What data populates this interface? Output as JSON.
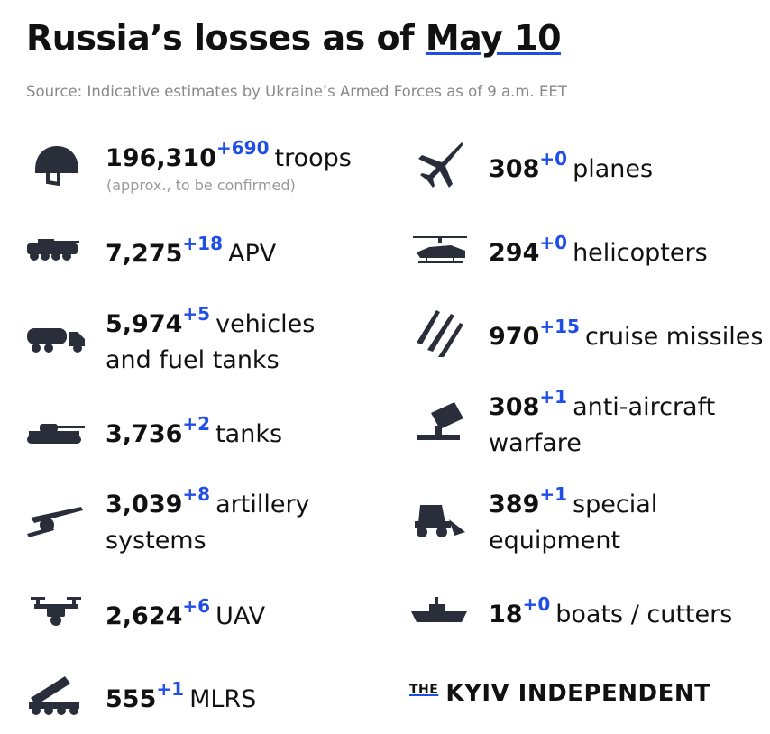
{
  "header": {
    "title_prefix": "Russia’s losses as of",
    "title_date": "May 10",
    "source": "Source: Indicative estimates by Ukraine’s Armed Forces as of 9 a.m. EET"
  },
  "left": [
    {
      "icon": "helmet-icon",
      "value": "196,310",
      "delta": "+690",
      "label": "troops",
      "note": "(approx., to be confirmed)"
    },
    {
      "icon": "apv-icon",
      "value": "7,275",
      "delta": "+18",
      "label": "APV"
    },
    {
      "icon": "fuel-truck-icon",
      "value": "5,974",
      "delta": "+5",
      "label": "vehicles",
      "label2": "and fuel tanks"
    },
    {
      "icon": "tank-icon",
      "value": "3,736",
      "delta": "+2",
      "label": "tanks"
    },
    {
      "icon": "artillery-icon",
      "value": "3,039",
      "delta": "+8",
      "label": "artillery",
      "label2": "systems"
    },
    {
      "icon": "drone-icon",
      "value": "2,624",
      "delta": "+6",
      "label": "UAV"
    },
    {
      "icon": "mlrs-icon",
      "value": "555",
      "delta": "+1",
      "label": "MLRS"
    }
  ],
  "right": [
    {
      "icon": "plane-icon",
      "value": "308",
      "delta": "+0",
      "label": "planes"
    },
    {
      "icon": "helicopter-icon",
      "value": "294",
      "delta": "+0",
      "label": "helicopters"
    },
    {
      "icon": "missiles-icon",
      "value": "970",
      "delta": "+15",
      "label": "cruise missiles"
    },
    {
      "icon": "anti-aircraft-icon",
      "value": "308",
      "delta": "+1",
      "label": "anti-aircraft",
      "label2": "warfare"
    },
    {
      "icon": "special-equipment-icon",
      "value": "389",
      "delta": "+1",
      "label": "special",
      "label2": "equipment"
    },
    {
      "icon": "boat-icon",
      "value": "18",
      "delta": "+0",
      "label": "boats / cutters"
    }
  ],
  "logo": {
    "the": "THE",
    "name": "KYIV INDEPENDENT"
  },
  "colors": {
    "accent": "#1e4ee6",
    "icon": "#2a2e3a",
    "source_text": "#8a8a8a"
  }
}
